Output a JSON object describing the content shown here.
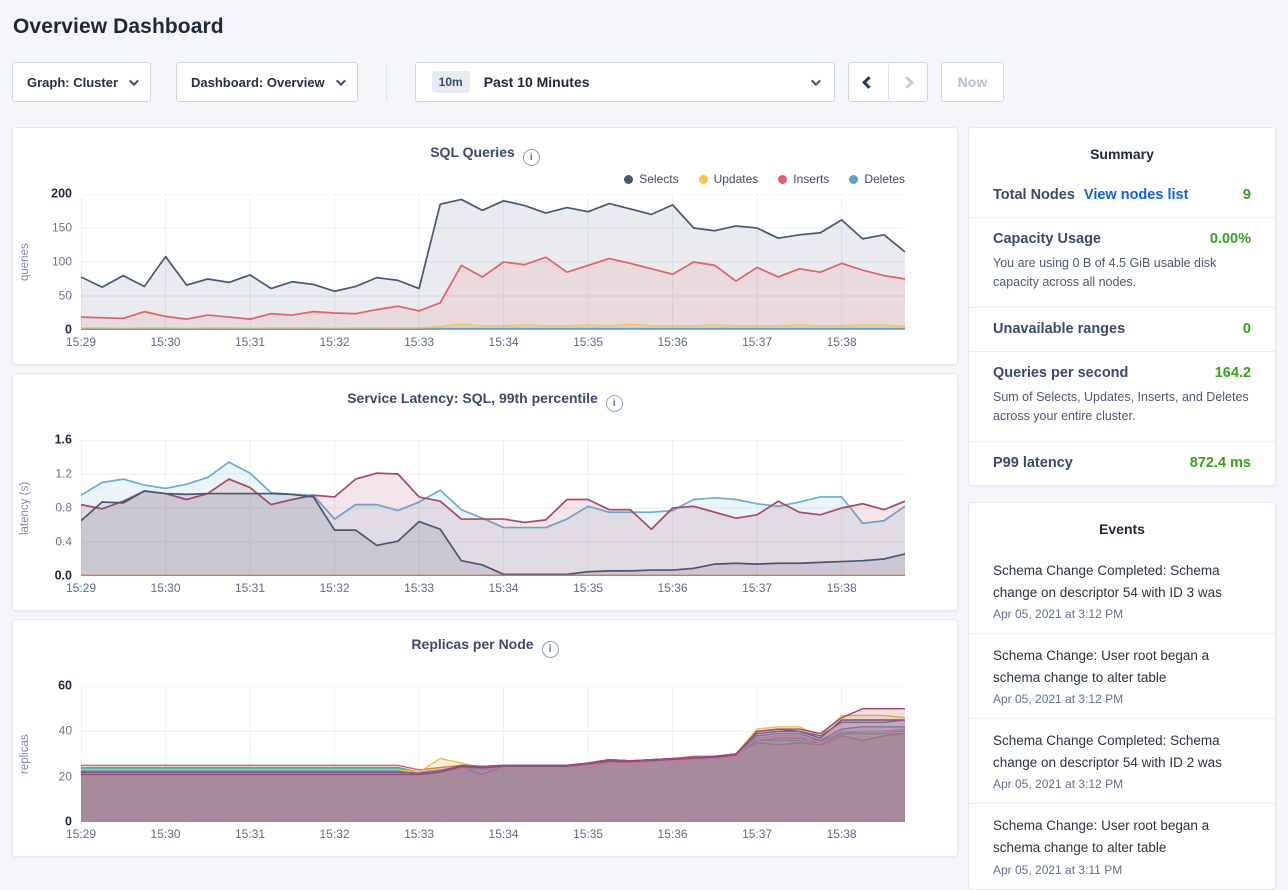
{
  "page": {
    "title": "Overview Dashboard"
  },
  "colors": {
    "green": "#35a31a",
    "link_blue": "#0f62dd"
  },
  "icons": {
    "info": "i",
    "chevron_down": "chevron-down",
    "chevron_left": "chevron-left",
    "chevron_right": "chevron-right"
  },
  "toolbar": {
    "graph_dropdown": "Graph: Cluster",
    "dashboard_dropdown": "Dashboard: Overview",
    "time_badge": "10m",
    "time_label": "Past 10 Minutes",
    "now_button": "Now"
  },
  "summary": {
    "title": "Summary",
    "rows": [
      {
        "label": "Total Nodes",
        "link": "View nodes list",
        "value": "9"
      },
      {
        "label": "Capacity Usage",
        "value": "0.00%",
        "subtext": "You are using 0 B of 4.5 GiB usable disk capacity across all nodes."
      },
      {
        "label": "Unavailable ranges",
        "value": "0"
      },
      {
        "label": "Queries per second",
        "value": "164.2",
        "subtext": "Sum of Selects, Updates, Inserts, and Deletes across your entire cluster."
      },
      {
        "label": "P99 latency",
        "value": "872.4 ms"
      }
    ]
  },
  "events": {
    "title": "Events",
    "items": [
      {
        "text": "Schema Change Completed: Schema change on descriptor 54 with ID 3 was",
        "time": "Apr 05, 2021 at 3:12 PM"
      },
      {
        "text": "Schema Change: User root began a schema change to alter table",
        "time": "Apr 05, 2021 at 3:12 PM"
      },
      {
        "text": "Schema Change Completed: Schema change on descriptor 54 with ID 2 was",
        "time": "Apr 05, 2021 at 3:12 PM"
      },
      {
        "text": "Schema Change: User root began a schema change to alter table",
        "time": "Apr 05, 2021 at 3:11 PM"
      }
    ]
  },
  "chart_data": [
    {
      "type": "area",
      "title": "SQL Queries",
      "ylabel": "queries",
      "ylim": [
        0,
        200
      ],
      "yticks": [
        0,
        50,
        100,
        150,
        200
      ],
      "ytick_labels": [
        "0",
        "50",
        "100",
        "150",
        "200"
      ],
      "x_tick_labels": [
        "15:29",
        "15:30",
        "15:31",
        "15:32",
        "15:33",
        "15:34",
        "15:35",
        "15:36",
        "15:37",
        "15:38"
      ],
      "x_tick_indices": [
        0,
        4,
        8,
        12,
        16,
        20,
        24,
        28,
        32,
        36
      ],
      "legend": true,
      "grid": true,
      "legend_position": "top-right",
      "fill_opacity": 0.12,
      "stroke_width": 1.7,
      "series": [
        {
          "name": "Selects",
          "color": "#475872",
          "values": [
            78,
            63,
            80,
            64,
            108,
            66,
            75,
            70,
            81,
            61,
            71,
            67,
            57,
            64,
            77,
            73,
            61,
            185,
            192,
            176,
            190,
            183,
            172,
            180,
            174,
            186,
            178,
            170,
            184,
            150,
            146,
            153,
            150,
            135,
            140,
            143,
            162,
            134,
            140,
            115
          ]
        },
        {
          "name": "Inserts",
          "color": "#e55f64",
          "values": [
            19,
            18,
            17,
            27,
            20,
            16,
            22,
            19,
            16,
            24,
            22,
            27,
            25,
            24,
            30,
            35,
            28,
            40,
            95,
            78,
            100,
            96,
            107,
            85,
            95,
            105,
            98,
            90,
            82,
            100,
            95,
            72,
            92,
            78,
            90,
            85,
            98,
            88,
            80,
            75
          ]
        },
        {
          "name": "Updates",
          "color": "#fdc243",
          "values": [
            3,
            3,
            2,
            3,
            3,
            2,
            3,
            3,
            2,
            3,
            3,
            3,
            2,
            3,
            3,
            3,
            3,
            5,
            8,
            6,
            6,
            7,
            6,
            6,
            7,
            6,
            8,
            6,
            6,
            6,
            7,
            6,
            6,
            6,
            7,
            6,
            6,
            7,
            7,
            5
          ]
        },
        {
          "name": "Deletes",
          "color": "#5ba3d0",
          "values": [
            1,
            1,
            1,
            1,
            1,
            1,
            1,
            1,
            1,
            1,
            1,
            1,
            1,
            1,
            1,
            1,
            1,
            2,
            2,
            2,
            2,
            2,
            2,
            2,
            2,
            2,
            2,
            2,
            2,
            2,
            2,
            2,
            2,
            2,
            2,
            2,
            2,
            2,
            2,
            2
          ]
        }
      ],
      "legend_order": [
        "Selects",
        "Updates",
        "Inserts",
        "Deletes"
      ]
    },
    {
      "type": "area",
      "title": "Service Latency: SQL, 99th percentile",
      "ylabel": "latency (s)",
      "ylim": [
        0,
        1.6
      ],
      "yticks": [
        0,
        0.4,
        0.8,
        1.2,
        1.6
      ],
      "ytick_labels": [
        "0.0",
        "0.4",
        "0.8",
        "1.2",
        "1.6"
      ],
      "x_tick_labels": [
        "15:29",
        "15:30",
        "15:31",
        "15:32",
        "15:33",
        "15:34",
        "15:35",
        "15:36",
        "15:37",
        "15:38"
      ],
      "x_tick_indices": [
        0,
        4,
        8,
        12,
        16,
        20,
        24,
        28,
        32,
        36
      ],
      "legend": false,
      "grid": true,
      "fill_opacity": 0.14,
      "stroke_width": 1.7,
      "series": [
        {
          "name": "line-blue",
          "color": "#67aed8",
          "values": [
            0.95,
            1.1,
            1.14,
            1.07,
            1.03,
            1.08,
            1.16,
            1.34,
            1.21,
            0.98,
            0.96,
            0.95,
            0.67,
            0.84,
            0.84,
            0.77,
            0.87,
            1.01,
            0.78,
            0.68,
            0.57,
            0.57,
            0.57,
            0.67,
            0.82,
            0.75,
            0.75,
            0.75,
            0.77,
            0.9,
            0.92,
            0.9,
            0.85,
            0.82,
            0.87,
            0.93,
            0.93,
            0.62,
            0.65,
            0.82
          ]
        },
        {
          "name": "line-maroon",
          "color": "#a84a60",
          "values": [
            0.84,
            0.79,
            0.88,
            1.0,
            0.97,
            0.9,
            0.97,
            1.14,
            1.04,
            0.84,
            0.9,
            0.95,
            0.93,
            1.14,
            1.21,
            1.2,
            0.93,
            0.88,
            0.67,
            0.67,
            0.67,
            0.63,
            0.66,
            0.9,
            0.9,
            0.78,
            0.78,
            0.55,
            0.8,
            0.82,
            0.75,
            0.68,
            0.72,
            0.88,
            0.75,
            0.72,
            0.8,
            0.85,
            0.78,
            0.88
          ]
        },
        {
          "name": "line-navy",
          "color": "#4a5573",
          "values": [
            0.65,
            0.87,
            0.86,
            1.0,
            0.97,
            0.96,
            0.97,
            0.97,
            0.97,
            0.97,
            0.96,
            0.93,
            0.54,
            0.54,
            0.36,
            0.41,
            0.64,
            0.55,
            0.18,
            0.13,
            0.02,
            0.02,
            0.02,
            0.02,
            0.05,
            0.06,
            0.06,
            0.07,
            0.07,
            0.09,
            0.14,
            0.15,
            0.14,
            0.15,
            0.15,
            0.16,
            0.17,
            0.18,
            0.2,
            0.26
          ]
        },
        {
          "name": "line-orange",
          "color": "#c97a4e",
          "values": [
            0.006,
            0.006,
            0.006,
            0.006,
            0.006,
            0.006,
            0.006,
            0.006,
            0.006,
            0.006,
            0.006,
            0.006,
            0.006,
            0.006,
            0.006,
            0.006,
            0.006,
            0.006,
            0.006,
            0.006,
            0.006,
            0.006,
            0.006,
            0.006,
            0.006,
            0.006,
            0.006,
            0.006,
            0.006,
            0.006,
            0.006,
            0.006,
            0.006,
            0.006,
            0.006,
            0.006,
            0.006,
            0.006,
            0.006,
            0.006
          ]
        }
      ]
    },
    {
      "type": "area",
      "title": "Replicas per Node",
      "ylabel": "replicas",
      "ylim": [
        0,
        60
      ],
      "yticks": [
        0,
        20,
        40,
        60
      ],
      "ytick_labels": [
        "0",
        "20",
        "40",
        "60"
      ],
      "x_tick_labels": [
        "15:29",
        "15:30",
        "15:31",
        "15:32",
        "15:33",
        "15:34",
        "15:35",
        "15:36",
        "15:37",
        "15:38"
      ],
      "x_tick_indices": [
        0,
        4,
        8,
        12,
        16,
        20,
        24,
        28,
        32,
        36
      ],
      "legend": false,
      "grid": true,
      "fill_opacity": 0.18,
      "stroke_width": 1.4,
      "series": [
        {
          "name": "node-line-1",
          "color": "#e0635f",
          "values": [
            25,
            25,
            25,
            25,
            25,
            25,
            25,
            25,
            25,
            25,
            25,
            25,
            25,
            25,
            25,
            25,
            23,
            24,
            25,
            24.5,
            25,
            25,
            25,
            25,
            26,
            27.5,
            27,
            27.5,
            28,
            29,
            29,
            30,
            35,
            34,
            35,
            34,
            38,
            36,
            38,
            39
          ]
        },
        {
          "name": "node-line-2",
          "color": "#56b170",
          "values": [
            24,
            24,
            24,
            24,
            24,
            24,
            24,
            24,
            24,
            24,
            24,
            24,
            24,
            24,
            24,
            24,
            22,
            23,
            24.5,
            24,
            25,
            25,
            25,
            25,
            26,
            27.5,
            27,
            27.5,
            28,
            28.5,
            29,
            30,
            36,
            37,
            37,
            36,
            39,
            40,
            40,
            40
          ]
        },
        {
          "name": "node-line-3",
          "color": "#45b2a4",
          "values": [
            23.4,
            23.4,
            23.4,
            23.4,
            23.4,
            23.4,
            23.4,
            23.4,
            23.4,
            23.4,
            23.4,
            23.4,
            23.4,
            23.4,
            23.4,
            23.4,
            21.5,
            22,
            24,
            23.5,
            24.5,
            24.5,
            24.5,
            24.5,
            25.5,
            27,
            26.5,
            27,
            27.5,
            28,
            28.5,
            29.5,
            36,
            36,
            36,
            35,
            39,
            39,
            39,
            39
          ]
        },
        {
          "name": "node-line-4",
          "color": "#f2bd3f",
          "values": [
            23,
            23,
            23,
            23,
            23,
            23,
            23,
            23,
            23,
            23,
            23,
            23,
            23,
            23,
            23,
            23,
            22,
            28,
            26,
            24,
            25,
            24.5,
            24.5,
            24.5,
            26,
            27.5,
            27,
            27,
            28,
            28.5,
            29,
            30,
            41,
            42,
            42,
            38,
            47,
            47,
            47,
            46
          ]
        },
        {
          "name": "node-line-5",
          "color": "#5f9ecb",
          "values": [
            22.5,
            22.5,
            22.5,
            22.5,
            22.5,
            22.5,
            22.5,
            22.5,
            22.5,
            22.5,
            22.5,
            22.5,
            22.5,
            22.5,
            22.5,
            22.5,
            21,
            21.5,
            24,
            21,
            24.5,
            24.5,
            24.5,
            24.5,
            25.5,
            26.5,
            26.5,
            27,
            27.5,
            28,
            28.5,
            29.5,
            38,
            39,
            39,
            36,
            41,
            42,
            42,
            42
          ]
        },
        {
          "name": "node-line-6",
          "color": "#556080",
          "values": [
            22,
            22,
            22,
            22,
            22,
            22,
            22,
            22,
            22,
            22,
            22,
            22,
            22,
            22,
            22,
            22,
            21.5,
            22,
            24.5,
            24,
            24.5,
            24.5,
            24.5,
            24.5,
            25.5,
            27,
            26.5,
            27,
            27.5,
            28,
            28.5,
            29.5,
            40,
            41,
            40,
            37,
            45,
            45,
            45,
            45
          ]
        },
        {
          "name": "node-line-7",
          "color": "#8a57a3",
          "values": [
            21.7,
            21.7,
            21.7,
            21.7,
            21.7,
            21.7,
            21.7,
            21.7,
            21.7,
            21.7,
            21.7,
            21.7,
            21.7,
            21.7,
            21.7,
            21.7,
            21.5,
            22.5,
            25,
            24.5,
            25,
            25,
            25,
            25,
            26,
            27.5,
            27,
            27.5,
            28,
            28.5,
            29,
            30,
            39,
            40,
            40,
            38,
            44,
            44,
            44,
            45
          ]
        },
        {
          "name": "node-line-8",
          "color": "#d877b5",
          "values": [
            21.3,
            21.3,
            21.3,
            21.3,
            21.3,
            21.3,
            21.3,
            21.3,
            21.3,
            21.3,
            21.3,
            21.3,
            21.3,
            21.3,
            21.3,
            21.3,
            21,
            21.5,
            23.5,
            23,
            24,
            24,
            24,
            24,
            25,
            26,
            26,
            26.5,
            27,
            27.5,
            28,
            29,
            37,
            38,
            38,
            35,
            40,
            40,
            40,
            41
          ]
        },
        {
          "name": "node-line-9",
          "color": "#9e4c66",
          "values": [
            21,
            21,
            21,
            21,
            21,
            21,
            21,
            21,
            21,
            21,
            21,
            21,
            21,
            21,
            21,
            21,
            21,
            22,
            25,
            24.5,
            25,
            25,
            25,
            25,
            26,
            27.5,
            27,
            27.5,
            28,
            28.5,
            29,
            30,
            40,
            41,
            41,
            39,
            46,
            50,
            50,
            50
          ]
        }
      ]
    }
  ]
}
